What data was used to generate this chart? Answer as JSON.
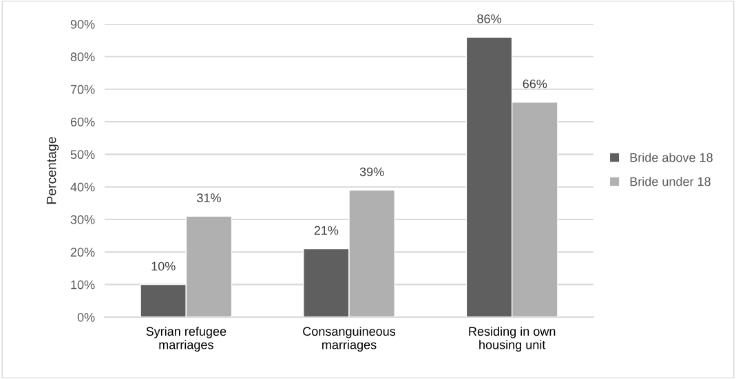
{
  "chart_data": {
    "type": "bar",
    "categories": [
      "Syrian refugee\nmarriages",
      "Consanguineous\nmarriages",
      "Residing in own\nhousing unit"
    ],
    "ylabel": "Percentage",
    "series": [
      {
        "name": "Bride above 18",
        "color": "#5f5f5f",
        "values": [
          10,
          21,
          86
        ],
        "value_labels": [
          "10%",
          "21%",
          "86%"
        ]
      },
      {
        "name": "Bride under 18",
        "color": "#b0b0b0",
        "values": [
          31,
          39,
          66
        ],
        "value_labels": [
          "31%",
          "39%",
          "66%"
        ]
      }
    ],
    "ylim": [
      0,
      90
    ],
    "yticks": [
      {
        "value": 0,
        "label": "0%"
      },
      {
        "value": 10,
        "label": "10%"
      },
      {
        "value": 20,
        "label": "20%"
      },
      {
        "value": 30,
        "label": "30%"
      },
      {
        "value": 40,
        "label": "40%"
      },
      {
        "value": 50,
        "label": "50%"
      },
      {
        "value": 60,
        "label": "60%"
      },
      {
        "value": 70,
        "label": "70%"
      },
      {
        "value": 80,
        "label": "80%"
      },
      {
        "value": 90,
        "label": "90%"
      }
    ],
    "grid": "y",
    "legend": "right"
  }
}
